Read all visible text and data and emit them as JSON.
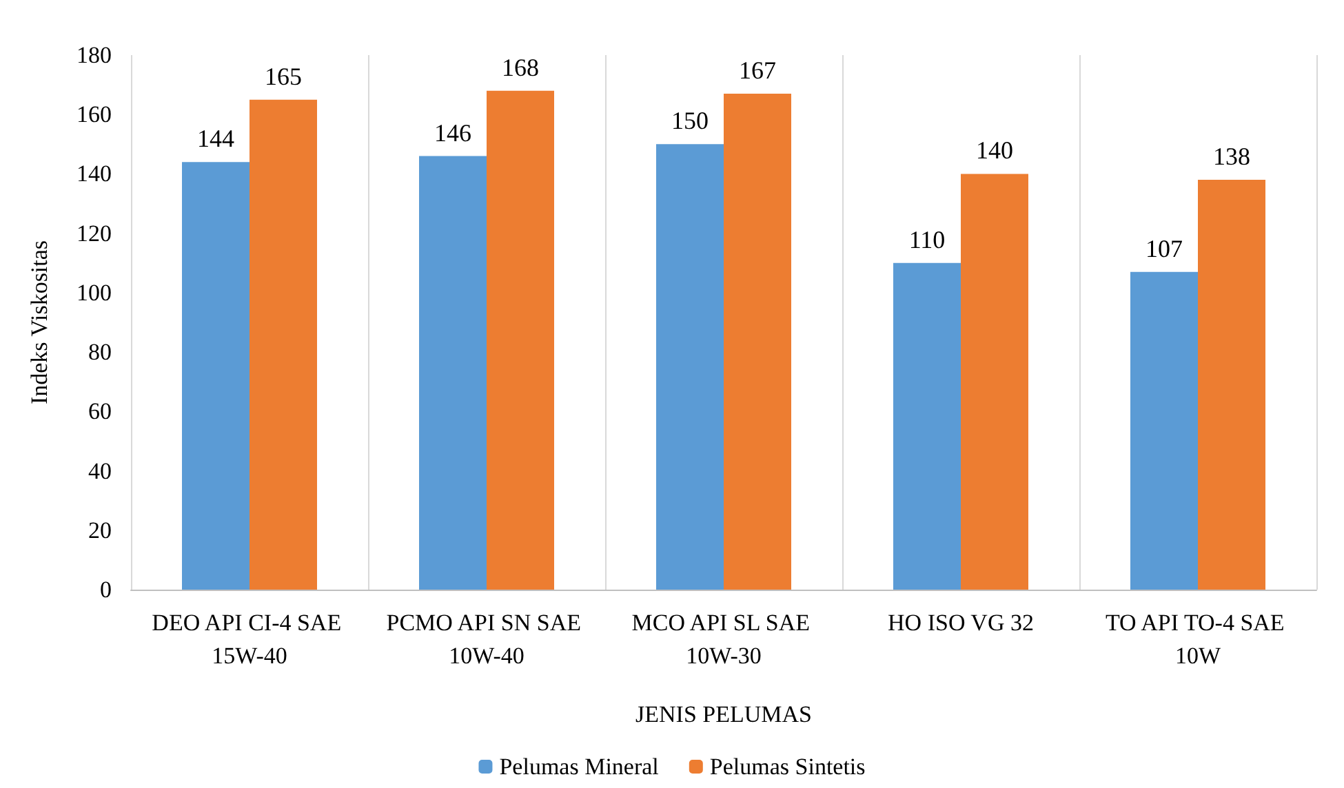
{
  "chart_data": {
    "type": "bar",
    "xlabel": "JENIS PELUMAS",
    "ylabel": "Indeks Viskositas",
    "categories": [
      "DEO API CI-4 SAE 15W-40",
      "PCMO API SN SAE 10W-40",
      "MCO API SL SAE 10W-30",
      "HO ISO VG 32",
      "TO API TO-4 SAE 10W"
    ],
    "series": [
      {
        "name": "Pelumas Mineral",
        "color": "#5b9bd5",
        "values": [
          144,
          146,
          150,
          110,
          107
        ]
      },
      {
        "name": "Pelumas Sintetis",
        "color": "#ed7d31",
        "values": [
          165,
          168,
          167,
          140,
          138
        ]
      }
    ],
    "ylim": [
      0,
      180
    ],
    "yticks": [
      0,
      20,
      40,
      60,
      80,
      100,
      120,
      140,
      160,
      180
    ],
    "grid": "x",
    "legend": "bottom",
    "data_labels": true
  }
}
